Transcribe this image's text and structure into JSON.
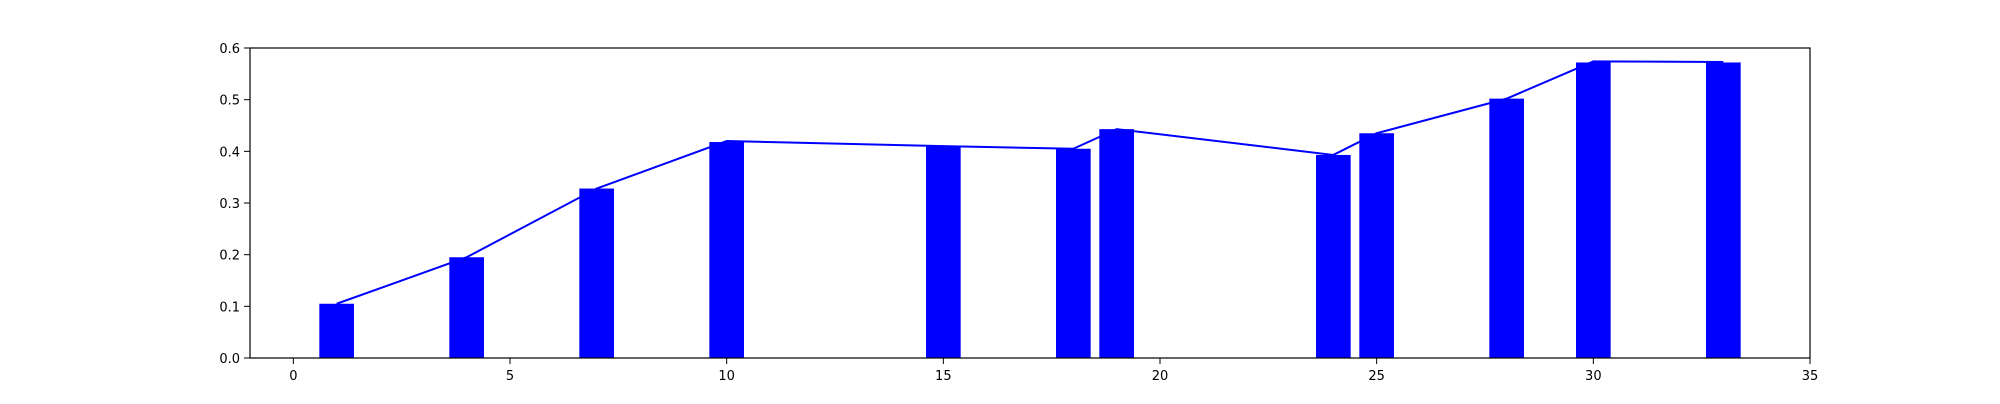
{
  "chart_data": {
    "type": "bar",
    "title": "",
    "xlabel": "",
    "ylabel": "",
    "xlim": [
      -1,
      35
    ],
    "ylim": [
      0,
      0.6
    ],
    "x_ticks": [
      0,
      5,
      10,
      15,
      20,
      25,
      30,
      35
    ],
    "y_ticks": [
      0.0,
      0.1,
      0.2,
      0.3,
      0.4,
      0.5,
      0.6
    ],
    "x_tick_labels": [
      "0",
      "5",
      "10",
      "15",
      "20",
      "25",
      "30",
      "35"
    ],
    "y_tick_labels": [
      "0.0",
      "0.1",
      "0.2",
      "0.3",
      "0.4",
      "0.5",
      "0.6"
    ],
    "grid": false,
    "bar_color": "#0000ff",
    "line_color": "#0000ff",
    "bar_width": 0.8,
    "series": [
      {
        "type": "bar",
        "x": [
          1,
          4,
          7,
          10,
          15,
          18,
          19,
          24,
          25,
          28,
          30,
          33
        ],
        "values": [
          0.105,
          0.195,
          0.328,
          0.418,
          0.41,
          0.405,
          0.443,
          0.393,
          0.435,
          0.502,
          0.572,
          0.572
        ]
      },
      {
        "type": "line",
        "x": [
          1,
          4,
          7,
          10,
          15,
          18,
          19,
          24,
          25,
          28,
          30,
          33
        ],
        "values": [
          0.105,
          0.195,
          0.328,
          0.42,
          0.41,
          0.405,
          0.443,
          0.393,
          0.435,
          0.502,
          0.574,
          0.573
        ]
      }
    ]
  }
}
